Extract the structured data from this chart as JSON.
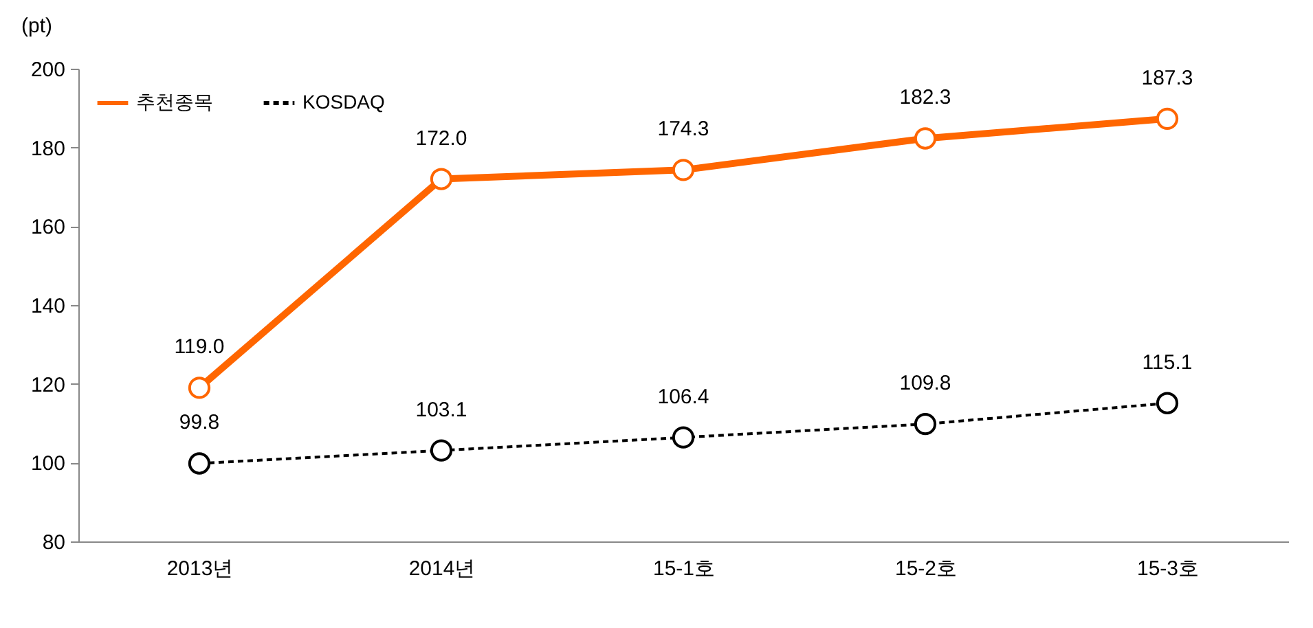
{
  "chart_data": {
    "type": "line",
    "ylabel": "(pt)",
    "categories": [
      "2013년",
      "2014년",
      "15-1호",
      "15-2호",
      "15-3호"
    ],
    "series": [
      {
        "name": "추천종목",
        "color": "#ff6600",
        "line_style": "solid",
        "values": [
          119.0,
          172.0,
          174.3,
          182.3,
          187.3
        ],
        "value_labels": [
          "119.0",
          "172.0",
          "174.3",
          "182.3",
          "187.3"
        ]
      },
      {
        "name": "KOSDAQ",
        "color": "#000000",
        "line_style": "dashed",
        "values": [
          99.8,
          103.1,
          106.4,
          109.8,
          115.1
        ],
        "value_labels": [
          "99.8",
          "103.1",
          "106.4",
          "109.8",
          "115.1"
        ]
      }
    ],
    "ylim": [
      80,
      200
    ],
    "yticks": [
      80,
      100,
      120,
      140,
      160,
      180,
      200
    ],
    "grid": false,
    "legend": "top left",
    "marker": "circle"
  }
}
